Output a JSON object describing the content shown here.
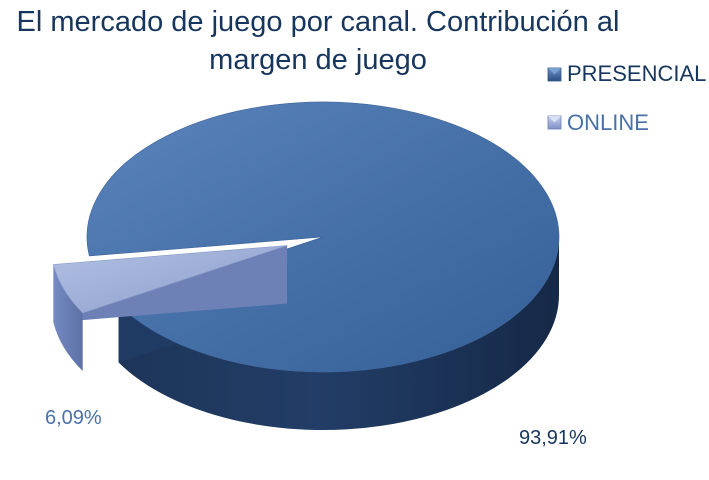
{
  "chart_data": {
    "type": "pie",
    "title": "El mercado de juego por canal. Contribución al margen de juego",
    "title_lines": [
      "El mercado de juego por canal. Contribución al",
      "margen de juego"
    ],
    "categories": [
      "PRESENCIAL",
      "ONLINE"
    ],
    "values": [
      93.91,
      6.09
    ],
    "data_labels": [
      "93,91%",
      "6,09%"
    ],
    "colors": {
      "PRESENCIAL": "#4a72a8",
      "ONLINE": "#9aaad4",
      "title": "#17365d",
      "online_label": "#4a72a8",
      "presencial_label": "#17365d"
    },
    "legend_placement": "right",
    "style": "3d-exploded"
  }
}
